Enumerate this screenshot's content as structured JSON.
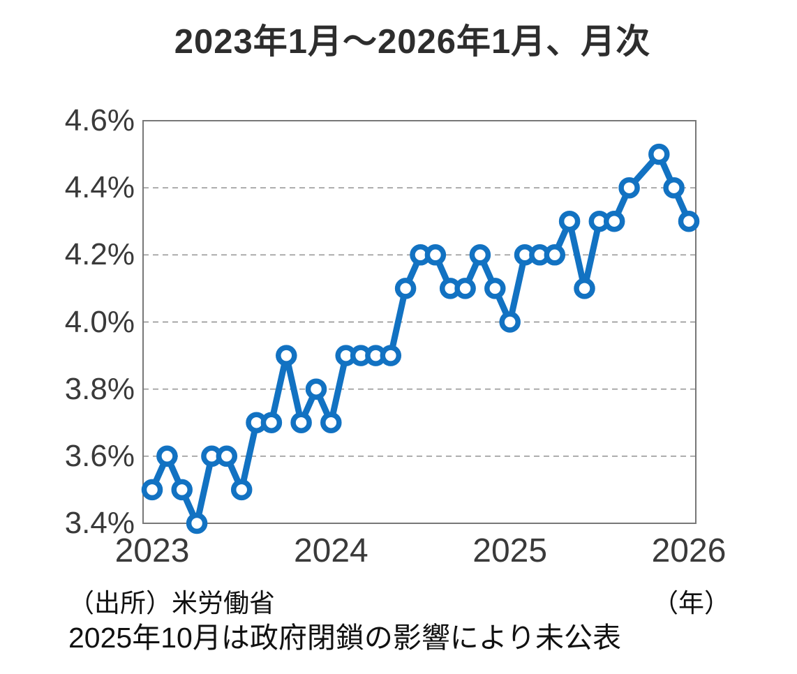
{
  "page": {
    "title": "2023年1月～2026年1月、月次",
    "source_note": "（出所）米労働省",
    "axis_unit_note": "（年）",
    "footnote": "2025年10月は政府閉鎖の影響により未公表"
  },
  "colors": {
    "line": "#1272c2",
    "marker_fill": "#ffffff",
    "grid": "#9a9a9a",
    "border": "#777777",
    "tick_text": "#3a3a3a",
    "note_text": "#111111"
  },
  "chart_data": {
    "type": "line",
    "title": "2023年1月～2026年1月、月次",
    "x_unit": "年",
    "x": [
      "2023-01",
      "2023-02",
      "2023-03",
      "2023-04",
      "2023-05",
      "2023-06",
      "2023-07",
      "2023-08",
      "2023-09",
      "2023-10",
      "2023-11",
      "2023-12",
      "2024-01",
      "2024-02",
      "2024-03",
      "2024-04",
      "2024-05",
      "2024-06",
      "2024-07",
      "2024-08",
      "2024-09",
      "2024-10",
      "2024-11",
      "2024-12",
      "2025-01",
      "2025-02",
      "2025-03",
      "2025-04",
      "2025-05",
      "2025-06",
      "2025-07",
      "2025-08",
      "2025-09",
      "2025-10",
      "2025-11",
      "2025-12",
      "2026-01"
    ],
    "values": [
      3.5,
      3.6,
      3.5,
      3.4,
      3.6,
      3.6,
      3.5,
      3.7,
      3.7,
      3.9,
      3.7,
      3.8,
      3.7,
      3.9,
      3.9,
      3.9,
      3.9,
      4.1,
      4.2,
      4.2,
      4.1,
      4.1,
      4.2,
      4.1,
      4.0,
      4.2,
      4.2,
      4.2,
      4.3,
      4.1,
      4.3,
      4.3,
      4.4,
      null,
      4.5,
      4.4,
      4.3
    ],
    "x_tick_labels": [
      "2023",
      "2024",
      "2025",
      "2026"
    ],
    "y_tick_labels": [
      "4.6%",
      "4.4%",
      "4.2%",
      "4.0%",
      "3.8%",
      "3.6%",
      "3.4%"
    ],
    "y_gridlines": [
      4.4,
      4.2,
      4.0,
      3.8,
      3.6
    ],
    "ylim": [
      3.4,
      4.6
    ],
    "grid": "horizontal-dashed",
    "legend": "none",
    "missing_data_note": "2025-10 not published (government shutdown)"
  }
}
